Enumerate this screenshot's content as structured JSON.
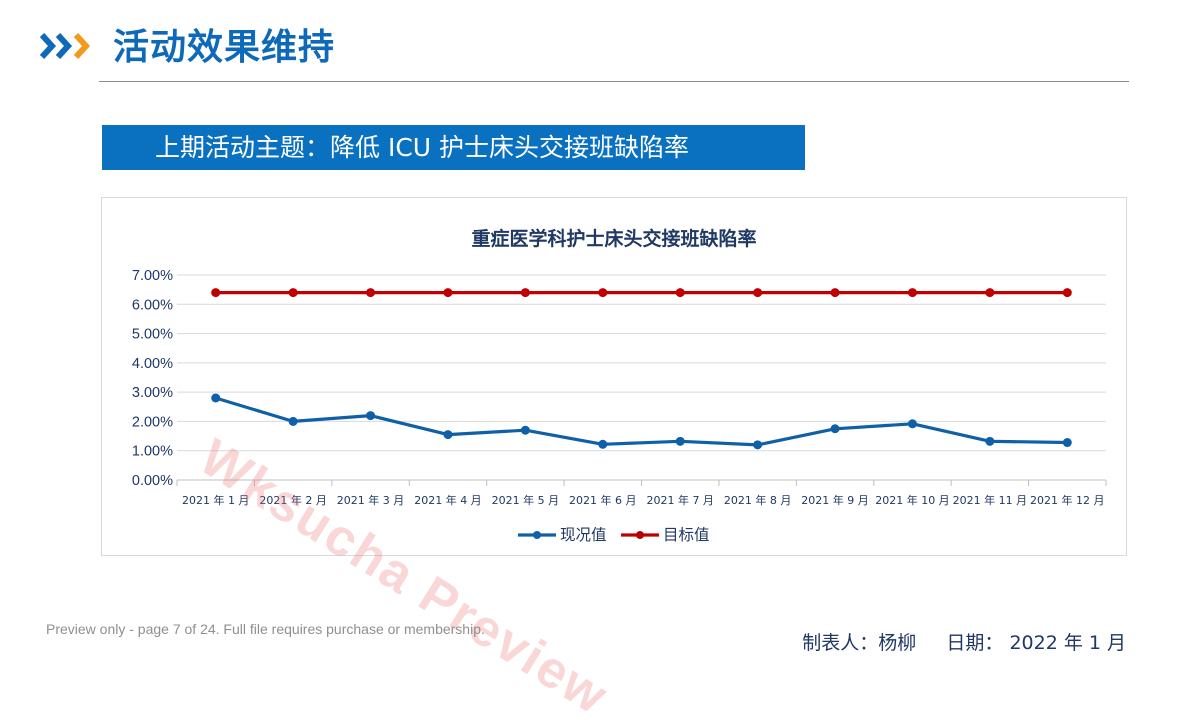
{
  "header": {
    "title": "活动效果维持"
  },
  "topic_bar": {
    "text": "上期活动主题：降低 ICU 护士床头交接班缺陷率"
  },
  "chart_data": {
    "type": "line",
    "title": "重症医学科护士床头交接班缺陷率",
    "xlabel": "",
    "ylabel": "",
    "categories": [
      "2021 年 1 月",
      "2021 年 2 月",
      "2021 年 3 月",
      "2021 年 4 月",
      "2021 年 5 月",
      "2021 年 6 月",
      "2021 年 7 月",
      "2021 年 8 月",
      "2021 年 9 月",
      "2021 年 10 月",
      "2021 年 11 月",
      "2021 年 12 月"
    ],
    "y_ticks": [
      "0.00%",
      "1.00%",
      "2.00%",
      "3.00%",
      "4.00%",
      "5.00%",
      "6.00%",
      "7.00%"
    ],
    "ylim": [
      0,
      0.07
    ],
    "grid": true,
    "legend_position": "bottom",
    "series": [
      {
        "name": "现况值",
        "color": "#1060a8",
        "values": [
          0.028,
          0.02,
          0.022,
          0.0155,
          0.017,
          0.0122,
          0.0132,
          0.012,
          0.0175,
          0.0192,
          0.0132,
          0.0128
        ]
      },
      {
        "name": "目标值",
        "color": "#c00000",
        "values": [
          0.064,
          0.064,
          0.064,
          0.064,
          0.064,
          0.064,
          0.064,
          0.064,
          0.064,
          0.064,
          0.064,
          0.064
        ]
      }
    ]
  },
  "footer": {
    "preview_note": "Preview only - page 7 of 24. Full file requires purchase or membership.",
    "author_label": "制表人：杨柳",
    "date_label": "日期：",
    "date_value": "2022 年 1 月"
  },
  "watermark": {
    "text": "Wksucha Preview"
  },
  "colors": {
    "accent_blue": "#0e6ab8",
    "chevron_orange": "#f29a1c",
    "topic_bar_bg": "#0a71c0",
    "current_series": "#1060a8",
    "target_series": "#c00000"
  },
  "icons": {
    "header_arrows": "double-chevron-right-icon"
  }
}
